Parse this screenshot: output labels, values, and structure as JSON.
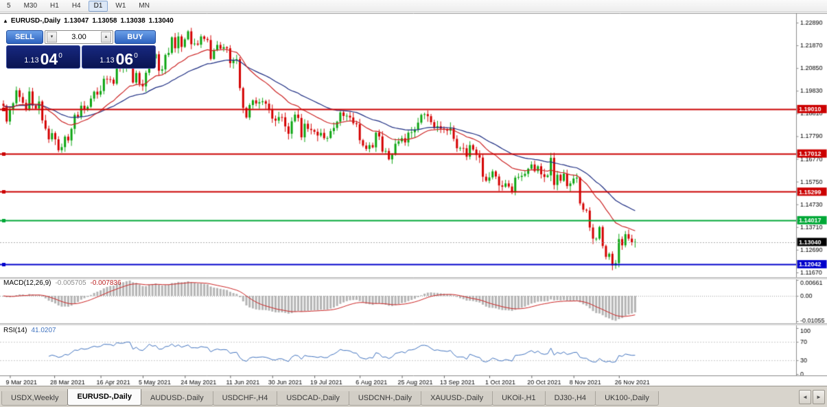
{
  "toolbar": {
    "periods": [
      "5",
      "M30",
      "H1",
      "H4",
      "D1",
      "W1",
      "MN"
    ],
    "active": "D1"
  },
  "chart": {
    "collapse_icon": "▲",
    "symbol_label": "EURUSD-,Daily",
    "open": "1.13047",
    "high": "1.13058",
    "low": "1.13038",
    "close": "1.13040"
  },
  "one_click": {
    "sell_label": "SELL",
    "buy_label": "BUY",
    "volume": "3.00",
    "spin_down": "▼",
    "spin_up": "▲",
    "bid": {
      "prefix": "1.13",
      "big": "04",
      "sup": "0"
    },
    "ask": {
      "prefix": "1.13",
      "big": "06",
      "sup": "0"
    }
  },
  "chart_data": {
    "type": "candlestick",
    "title": "EURUSD-,Daily",
    "x_labels": [
      {
        "text": "9 Mar 2021",
        "bar": 2
      },
      {
        "text": "28 Mar 2021",
        "bar": 15.7
      },
      {
        "text": "16 Apr 2021",
        "bar": 30
      },
      {
        "text": "5 May 2021",
        "bar": 43
      },
      {
        "text": "24 May 2021",
        "bar": 56
      },
      {
        "text": "11 Jun 2021",
        "bar": 70
      },
      {
        "text": "30 Jun 2021",
        "bar": 83
      },
      {
        "text": "19 Jul 2021",
        "bar": 96
      },
      {
        "text": "6 Aug 2021",
        "bar": 110
      },
      {
        "text": "25 Aug 2021",
        "bar": 123
      },
      {
        "text": "13 Sep 2021",
        "bar": 136
      },
      {
        "text": "1 Oct 2021",
        "bar": 150
      },
      {
        "text": "20 Oct 2021",
        "bar": 163
      },
      {
        "text": "8 Nov 2021",
        "bar": 176
      },
      {
        "text": "26 Nov 2021",
        "bar": 190
      }
    ],
    "y_axis_ticks": [
      "1.22890",
      "1.21870",
      "1.20850",
      "1.19830",
      "1.18810",
      "1.17790",
      "1.16770",
      "1.15750",
      "1.14730",
      "1.13710",
      "1.12690",
      "1.11670"
    ],
    "first_open": 1.1925,
    "closes": [
      1.1915,
      1.1845,
      1.19,
      1.1927,
      1.1985,
      1.1955,
      1.1929,
      1.1899,
      1.198,
      1.1917,
      1.1903,
      1.1935,
      1.185,
      1.1813,
      1.1765,
      1.1793,
      1.1765,
      1.1716,
      1.173,
      1.1777,
      1.176,
      1.1812,
      1.1875,
      1.1867,
      1.1916,
      1.1899,
      1.1911,
      1.1948,
      1.1979,
      1.1966,
      1.1982,
      1.2037,
      1.2035,
      1.2033,
      1.2015,
      1.2097,
      1.2089,
      1.2091,
      1.2124,
      1.2123,
      1.202,
      1.2063,
      1.2014,
      1.2003,
      1.2064,
      1.2165,
      1.2128,
      1.2147,
      1.2073,
      1.2079,
      1.2144,
      1.2153,
      1.2223,
      1.2174,
      1.2227,
      1.218,
      1.2214,
      1.225,
      1.2192,
      1.2195,
      1.219,
      1.2227,
      1.2216,
      1.2211,
      1.2126,
      1.2166,
      1.2189,
      1.2172,
      1.2179,
      1.2174,
      1.2107,
      1.2121,
      1.2125,
      1.1995,
      1.1906,
      1.1863,
      1.1919,
      1.194,
      1.1926,
      1.1932,
      1.1936,
      1.1925,
      1.1897,
      1.1858,
      1.1849,
      1.1865,
      1.1864,
      1.1823,
      1.179,
      1.1846,
      1.1876,
      1.1861,
      1.1774,
      1.1835,
      1.1812,
      1.1807,
      1.1799,
      1.1782,
      1.1794,
      1.177,
      1.1771,
      1.1802,
      1.1816,
      1.1844,
      1.1886,
      1.187,
      1.1871,
      1.1863,
      1.1837,
      1.1833,
      1.1761,
      1.1737,
      1.1722,
      1.1739,
      1.1729,
      1.1795,
      1.1778,
      1.171,
      1.1713,
      1.1675,
      1.1696,
      1.1745,
      1.1756,
      1.177,
      1.1751,
      1.1795,
      1.1797,
      1.1809,
      1.184,
      1.1875,
      1.1878,
      1.1869,
      1.1842,
      1.1816,
      1.1824,
      1.1813,
      1.181,
      1.1804,
      1.1816,
      1.1767,
      1.1725,
      1.1726,
      1.1725,
      1.1687,
      1.1739,
      1.1719,
      1.1695,
      1.1683,
      1.1597,
      1.1579,
      1.1594,
      1.1621,
      1.1598,
      1.1558,
      1.1552,
      1.1567,
      1.1553,
      1.1529,
      1.1593,
      1.1596,
      1.1601,
      1.161,
      1.1633,
      1.1652,
      1.1622,
      1.1644,
      1.1608,
      1.1596,
      1.1603,
      1.1682,
      1.156,
      1.1606,
      1.1579,
      1.1611,
      1.1555,
      1.1567,
      1.1589,
      1.1593,
      1.1477,
      1.1449,
      1.1445,
      1.1369,
      1.1319,
      1.1319,
      1.1371,
      1.1286,
      1.1237,
      1.1251,
      1.1199,
      1.1209,
      1.1317,
      1.1289,
      1.1339,
      1.1319,
      1.1302,
      1.1304
    ],
    "levels": [
      {
        "price": 1.1901,
        "label": "1.19010",
        "color": "#cc0000",
        "width": 2
      },
      {
        "price": 1.17012,
        "label": "1.17012",
        "color": "#cc0000",
        "width": 2
      },
      {
        "price": 1.15299,
        "label": "1.15299",
        "color": "#cc0000",
        "width": 2
      },
      {
        "price": 1.14017,
        "label": "1.14017",
        "color": "#00a836",
        "width": 2
      },
      {
        "price": 1.12042,
        "label": "1.12042",
        "color": "#0000cc",
        "width": 2
      }
    ],
    "current_price": {
      "value": 1.1304,
      "label": "1.13040",
      "color": "#000000"
    },
    "candle_colors": {
      "up": "#0da512",
      "down": "#d40000"
    },
    "moving_averages": [
      {
        "color": "#cc2222"
      },
      {
        "color": "#1a2a80"
      }
    ],
    "macd": {
      "name": "MACD(12,26,9)",
      "v1": "-0.005705",
      "v2": "-0.007836",
      "axis_labels": [
        "0.00661",
        "0.00",
        "-0.01055"
      ],
      "axis_max": 0.00661,
      "axis_min": -0.01055,
      "hist_color": "#b4b4b4",
      "signal_color": "#cc2222"
    },
    "rsi": {
      "name": "RSI(14)",
      "value": "41.0207",
      "axis_labels": [
        "100",
        "70",
        "30",
        "0"
      ],
      "levels": [
        70,
        30
      ],
      "line_color": "#3f72bf"
    }
  },
  "tabs": {
    "items": [
      "USDX,Weekly",
      "EURUSD-,Daily",
      "AUDUSD-,Daily",
      "USDCHF-,H4",
      "USDCAD-,Daily",
      "USDCNH-,Daily",
      "XAUUSD-,Daily",
      "UKOil-,H1",
      "DJ30-,H4",
      "UK100-,Daily"
    ],
    "active": "EURUSD-,Daily"
  },
  "tab_scroll": {
    "left": "◄",
    "right": "►"
  }
}
